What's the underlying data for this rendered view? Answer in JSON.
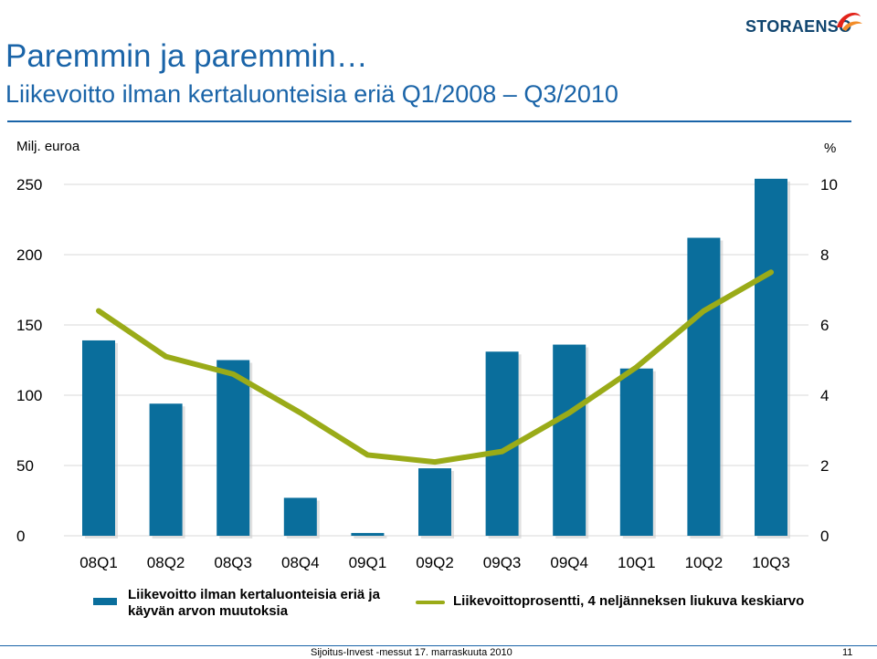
{
  "header": {
    "title": "Paremmin ja paremmin…",
    "subtitle": "Liikevoitto ilman kertaluonteisia eriä Q1/2008 – Q3/2010",
    "logo_text": "STORAENSO"
  },
  "chart_data": {
    "type": "bar",
    "categories": [
      "08Q1",
      "08Q2",
      "08Q3",
      "08Q4",
      "09Q1",
      "09Q2",
      "09Q3",
      "09Q4",
      "10Q1",
      "10Q2",
      "10Q3"
    ],
    "ylabel": "Milj. euroa",
    "y2label": "%",
    "ylim": [
      0,
      250
    ],
    "y2lim": [
      0,
      10
    ],
    "yticks": [
      0,
      50,
      100,
      150,
      200,
      250
    ],
    "y2ticks": [
      0,
      2,
      4,
      6,
      8,
      10
    ],
    "grid": true,
    "series": [
      {
        "name": "Liikevoitto ilman kertaluonteisia eriä ja käyvän arvon muutoksia",
        "type": "bar",
        "axis": "left",
        "values": [
          139,
          94,
          125,
          27,
          2,
          48,
          131,
          136,
          119,
          212,
          254
        ]
      },
      {
        "name": "Liikevoittoprosentti, 4 neljänneksen liukuva keskiarvo",
        "type": "line",
        "axis": "right",
        "values": [
          6.4,
          5.1,
          4.6,
          3.5,
          2.3,
          2.1,
          2.4,
          3.5,
          4.8,
          6.4,
          7.5
        ]
      }
    ],
    "colors": {
      "bar": "#0a6e9c",
      "line": "#9aab18",
      "grid": "#d9d9d9"
    },
    "legend_position": "bottom"
  },
  "footer": {
    "text": "Sijoitus-Invest -messut   17. marraskuuta 2010",
    "page": "11"
  }
}
